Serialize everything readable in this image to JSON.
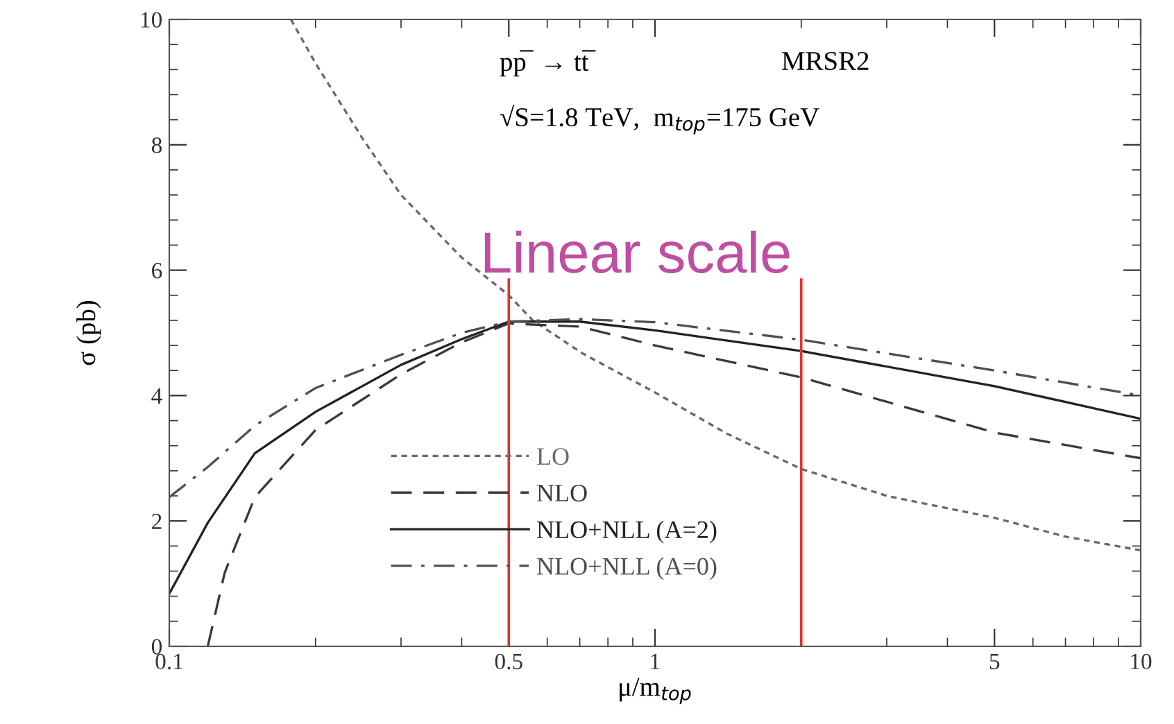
{
  "chart_data": {
    "type": "line",
    "xlabel": "μ/m$_{top}$",
    "ylabel": "σ (pb)",
    "log": "x",
    "xlim": [
      0.1,
      10
    ],
    "xticks": [
      0.1,
      0.5,
      1,
      5,
      10
    ],
    "ylim": [
      0,
      10
    ],
    "yticks": [
      0,
      2,
      4,
      6,
      8,
      10
    ],
    "grid": false,
    "legend": "bottom",
    "series": [
      {
        "name": "LO",
        "color": "#6a6a6a",
        "line_style": "dotted",
        "x": [
          0.178,
          0.2,
          0.25,
          0.3,
          0.4,
          0.5,
          0.56,
          0.71,
          1,
          1.4,
          2,
          3,
          5,
          7,
          10
        ],
        "values": [
          10,
          9.3,
          8.1,
          7.2,
          6.2,
          5.6,
          5.2,
          4.67,
          4.05,
          3.4,
          2.83,
          2.4,
          2.05,
          1.75,
          1.53
        ]
      },
      {
        "name": "NLO",
        "color": "#3a3a3a",
        "line_style": "dashed",
        "x": [
          0.12,
          0.13,
          0.15,
          0.2,
          0.3,
          0.4,
          0.5,
          0.7,
          1,
          2,
          5,
          10
        ],
        "values": [
          0,
          1.17,
          2.38,
          3.45,
          4.34,
          4.85,
          5.15,
          5.1,
          4.8,
          4.29,
          3.41,
          3.0
        ]
      },
      {
        "name": "NLO+NLL (A=2)",
        "color": "#222222",
        "line_style": "solid",
        "x": [
          0.1,
          0.12,
          0.15,
          0.2,
          0.3,
          0.4,
          0.5,
          0.7,
          1,
          2,
          5,
          10
        ],
        "values": [
          0.84,
          1.97,
          3.08,
          3.74,
          4.49,
          4.9,
          5.18,
          5.18,
          5.04,
          4.71,
          4.15,
          3.63
        ]
      },
      {
        "name": "NLO+NLL (A=0)",
        "color": "#505050",
        "line_style": "dashdot",
        "x": [
          0.1,
          0.12,
          0.15,
          0.2,
          0.3,
          0.4,
          0.5,
          0.7,
          1,
          2,
          5,
          10
        ],
        "values": [
          2.38,
          2.86,
          3.52,
          4.12,
          4.65,
          5.0,
          5.18,
          5.22,
          5.17,
          4.89,
          4.4,
          4.0
        ]
      }
    ],
    "ref_lines": [
      {
        "axis": "x",
        "value": 0.5,
        "color": "#e8302a"
      },
      {
        "axis": "x",
        "value": 2,
        "color": "#e8302a"
      }
    ],
    "annotations": [
      "pp̅  → tt̅",
      "MRSR2",
      "√S=1.8 TeV,  m$_{top}$=175 GeV",
      "Linear scale"
    ]
  }
}
